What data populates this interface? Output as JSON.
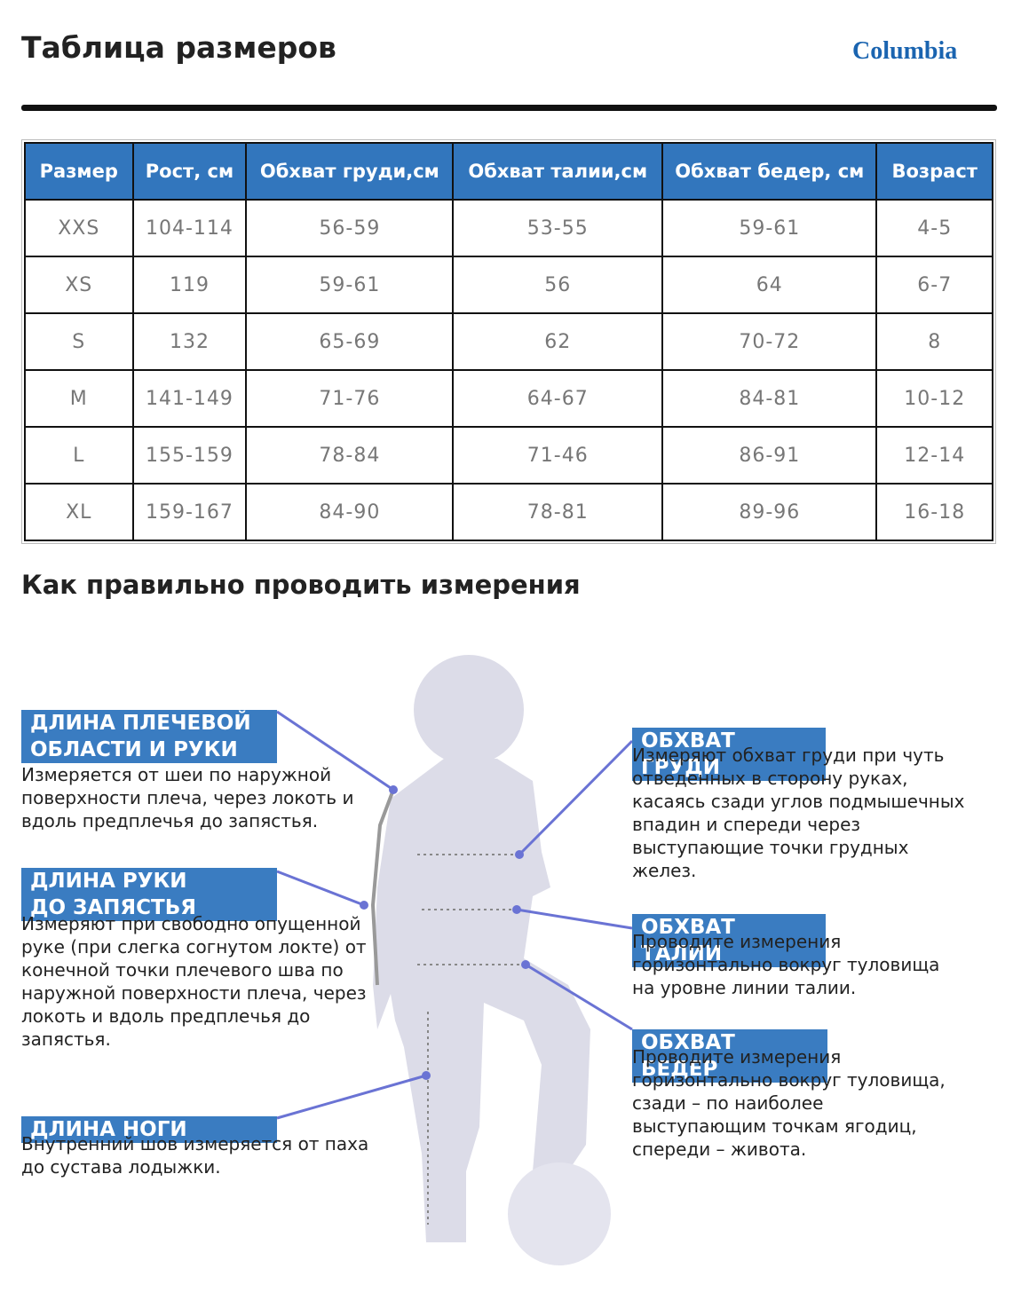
{
  "header": {
    "title": "Таблица размеров",
    "logo": "Columbia"
  },
  "table": {
    "columns": [
      "Размер",
      "Рост, см",
      "Обхват груди,см",
      "Обхват талии,см",
      "Обхват бедер, см",
      "Возраст"
    ],
    "rows": [
      [
        "XXS",
        "104-114",
        "56-59",
        "53-55",
        "59-61",
        "4-5"
      ],
      [
        "XS",
        "119",
        "59-61",
        "56",
        "64",
        "6-7"
      ],
      [
        "S",
        "132",
        "65-69",
        "62",
        "70-72",
        "8"
      ],
      [
        "M",
        "141-149",
        "71-76",
        "64-67",
        "84-81",
        "10-12"
      ],
      [
        "L",
        "155-159",
        "78-84",
        "71-46",
        "86-91",
        "12-14"
      ],
      [
        "XL",
        "159-167",
        "84-90",
        "78-81",
        "89-96",
        "16-18"
      ]
    ]
  },
  "guide": {
    "title": "Как правильно проводить измерения",
    "items": [
      {
        "title_lines": [
          "ДЛИНА ПЛЕЧЕВОЙ",
          "ОБЛАСТИ И РУКИ"
        ],
        "text_lines": [
          "Измеряется от шеи по наружной",
          "поверхности плеча, через локоть и",
          "вдоль предплечья до запястья."
        ]
      },
      {
        "title_lines": [
          "ДЛИНА РУКИ",
          "ДО ЗАПЯСТЬЯ"
        ],
        "text_lines": [
          "Измеряют при свободно опущенной",
          "руке (при слегка согнутом локте) от",
          "конечной точки плечевого шва по",
          "наружной поверхности плеча, через",
          "локоть и вдоль предплечья до",
          "запястья."
        ]
      },
      {
        "title_lines": [
          "ДЛИНА НОГИ"
        ],
        "text_lines": [
          "Внутренний шов измеряется от паха",
          "до сустава лодыжки."
        ]
      },
      {
        "title_lines": [
          "ОБХВАТ ГРУДИ"
        ],
        "text_lines": [
          "Измеряют обхват груди при чуть",
          "отведенных в сторону руках,",
          "касаясь сзади углов подмышечных",
          "впадин и спереди через",
          "выступающие точки грудных",
          "желез."
        ]
      },
      {
        "title_lines": [
          "ОБХВАТ ТАЛИИ"
        ],
        "text_lines": [
          "Проводите измерения",
          "горизонтально вокруг туловища",
          "на уровне линии талии."
        ]
      },
      {
        "title_lines": [
          "ОБХВАТ БЕДЕР"
        ],
        "text_lines": [
          "Проводите измерения",
          "горизонтально вокруг туловища,",
          "сзади – по наиболее",
          "выступающим точкам ягодиц,",
          "спереди – живота."
        ]
      }
    ]
  }
}
